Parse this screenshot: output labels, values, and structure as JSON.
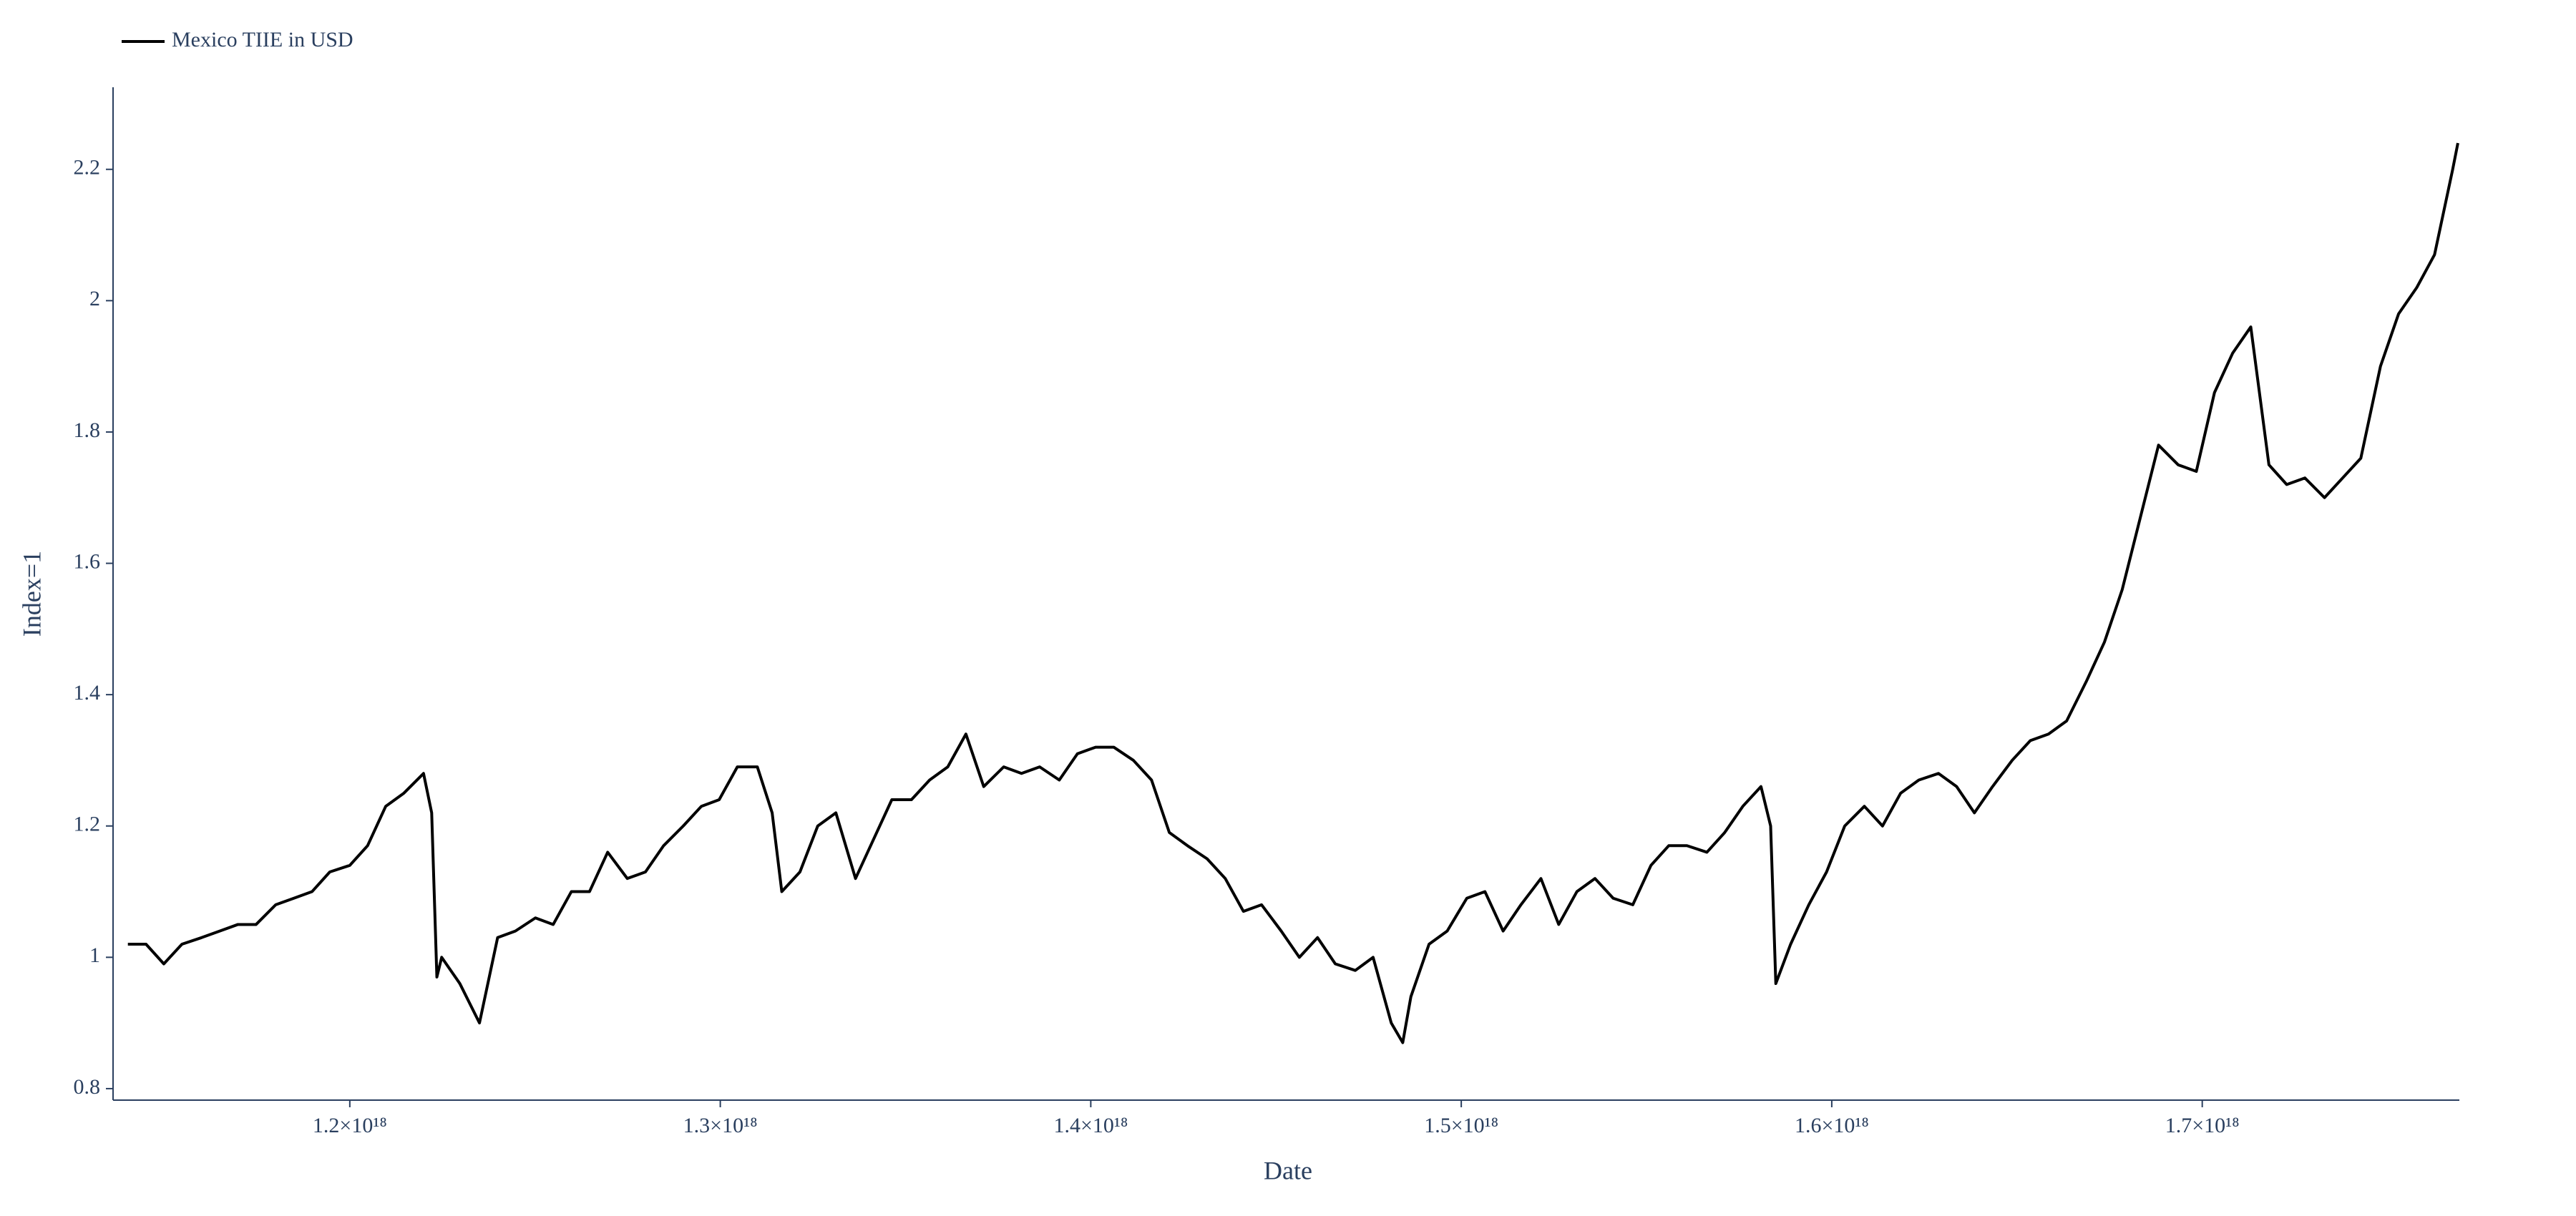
{
  "chart_data": {
    "type": "line",
    "x_label": "Date",
    "y_label": "Index=1",
    "x": [
      1.1401e+18,
      1.145e+18,
      1.1498e+18,
      1.1547e+18,
      1.16e+18,
      1.1649e+18,
      1.1698e+18,
      1.1747e+18,
      1.18e+18,
      1.1849e+18,
      1.1898e+18,
      1.1946e+18,
      1.2e+18,
      1.2048e+18,
      1.2097e+18,
      1.2146e+18,
      1.2199e+18,
      1.2221e+18,
      1.2235e+18,
      1.2248e+18,
      1.2297e+18,
      1.235e+18,
      1.2399e+18,
      1.2447e+18,
      1.2501e+18,
      1.2549e+18,
      1.2598e+18,
      1.2647e+18,
      1.2696e+18,
      1.2749e+18,
      1.2798e+18,
      1.2847e+18,
      1.29e+18,
      1.2949e+18,
      1.2997e+18,
      1.3046e+18,
      1.31e+18,
      1.314e+18,
      1.3166e+18,
      1.3215e+18,
      1.3263e+18,
      1.3312e+18,
      1.3365e+18,
      1.3414e+18,
      1.3463e+18,
      1.3516e+18,
      1.3565e+18,
      1.3614e+18,
      1.3663e+18,
      1.3711e+18,
      1.3765e+18,
      1.3813e+18,
      1.3862e+18,
      1.3915e+18,
      1.3964e+18,
      1.4013e+18,
      1.4062e+18,
      1.4115e+18,
      1.4164e+18,
      1.4212e+18,
      1.4261e+18,
      1.4314e+18,
      1.4363e+18,
      1.4412e+18,
      1.4461e+18,
      1.4514e+18,
      1.4563e+18,
      1.4612e+18,
      1.466e+18,
      1.4714e+18,
      1.4762e+18,
      1.4811e+18,
      1.4842e+18,
      1.4864e+18,
      1.4913e+18,
      1.4962e+18,
      1.5015e+18,
      1.5064e+18,
      1.5113e+18,
      1.5161e+18,
      1.5215e+18,
      1.5263e+18,
      1.5312e+18,
      1.5361e+18,
      1.541e+18,
      1.5463e+18,
      1.5512e+18,
      1.556e+18,
      1.5609e+18,
      1.5663e+18,
      1.5711e+18,
      1.576e+18,
      1.5809e+18,
      1.5835e+18,
      1.5849e+18,
      1.5889e+18,
      1.5938e+18,
      1.5986e+18,
      1.6035e+18,
      1.6088e+18,
      1.6137e+18,
      1.6186e+18,
      1.6235e+18,
      1.6288e+18,
      1.6337e+18,
      1.6385e+18,
      1.6434e+18,
      1.6487e+18,
      1.6536e+18,
      1.6585e+18,
      1.6634e+18,
      1.6687e+18,
      1.6736e+18,
      1.6784e+18,
      1.6833e+18,
      1.6882e+18,
      1.6935e+18,
      1.6984e+18,
      1.7033e+18,
      1.7082e+18,
      1.7131e+18,
      1.718e+18,
      1.7228e+18,
      1.7277e+18,
      1.733e+18,
      1.7379e+18,
      1.7428e+18,
      1.7481e+18,
      1.753e+18,
      1.7579e+18,
      1.7627e+18,
      1.7676e+18,
      1.769e+18
    ],
    "series": [
      {
        "name": "Mexico TIIE in USD",
        "color": "#000000",
        "values": [
          1.02,
          1.02,
          0.99,
          1.02,
          1.03,
          1.04,
          1.05,
          1.05,
          1.08,
          1.09,
          1.1,
          1.13,
          1.14,
          1.17,
          1.23,
          1.25,
          1.28,
          1.22,
          0.97,
          1.0,
          0.96,
          0.9,
          1.03,
          1.04,
          1.06,
          1.05,
          1.1,
          1.1,
          1.16,
          1.12,
          1.13,
          1.17,
          1.2,
          1.23,
          1.24,
          1.29,
          1.29,
          1.22,
          1.1,
          1.13,
          1.2,
          1.22,
          1.12,
          1.18,
          1.24,
          1.24,
          1.27,
          1.29,
          1.34,
          1.26,
          1.29,
          1.28,
          1.29,
          1.27,
          1.31,
          1.32,
          1.32,
          1.3,
          1.27,
          1.19,
          1.17,
          1.15,
          1.12,
          1.07,
          1.08,
          1.04,
          1.0,
          1.03,
          0.99,
          0.98,
          1.0,
          0.9,
          0.87,
          0.94,
          1.02,
          1.04,
          1.09,
          1.1,
          1.04,
          1.08,
          1.12,
          1.05,
          1.1,
          1.12,
          1.09,
          1.08,
          1.14,
          1.17,
          1.17,
          1.16,
          1.19,
          1.23,
          1.26,
          1.2,
          0.96,
          1.02,
          1.08,
          1.13,
          1.2,
          1.23,
          1.2,
          1.25,
          1.27,
          1.28,
          1.26,
          1.22,
          1.26,
          1.3,
          1.33,
          1.34,
          1.36,
          1.42,
          1.48,
          1.56,
          1.67,
          1.78,
          1.75,
          1.74,
          1.86,
          1.92,
          1.96,
          1.75,
          1.72,
          1.73,
          1.7,
          1.73,
          1.76,
          1.9,
          1.98,
          2.02,
          2.07,
          2.2,
          2.24
        ]
      }
    ],
    "xlim": [
      1.1361e+18,
      1.7694e+18
    ],
    "xticks": [
      {
        "value": 1.2e+18,
        "label": "1.2×10¹⁸"
      },
      {
        "value": 1.3e+18,
        "label": "1.3×10¹⁸"
      },
      {
        "value": 1.4e+18,
        "label": "1.4×10¹⁸"
      },
      {
        "value": 1.5e+18,
        "label": "1.5×10¹⁸"
      },
      {
        "value": 1.6e+18,
        "label": "1.6×10¹⁸"
      },
      {
        "value": 1.7e+18,
        "label": "1.7×10¹⁸"
      }
    ],
    "ylim": [
      0.7825,
      2.325
    ],
    "yticks": [
      0.8,
      1,
      1.2,
      1.4,
      1.6,
      1.8,
      2,
      2.2
    ],
    "grid": false,
    "legend": "top-left"
  }
}
